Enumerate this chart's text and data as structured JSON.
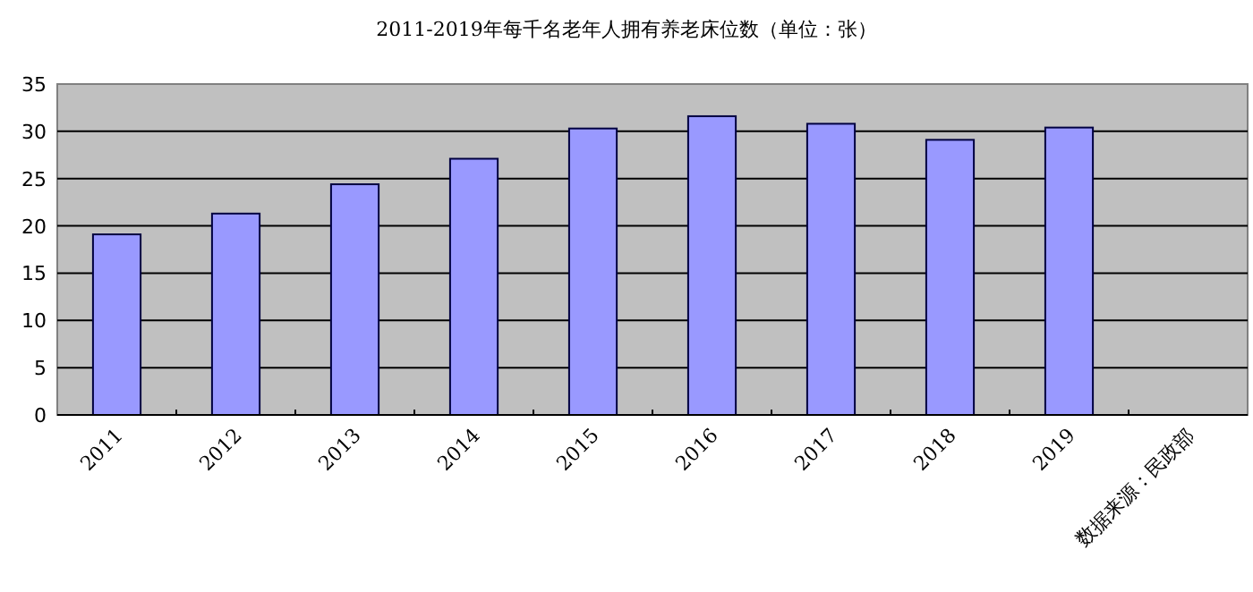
{
  "chart_data": {
    "type": "bar",
    "title": "2011-2019年每千名老年人拥有养老床位数（单位：张）",
    "categories": [
      "2011",
      "2012",
      "2013",
      "2014",
      "2015",
      "2016",
      "2017",
      "2018",
      "2019",
      "数据来源：民政部"
    ],
    "values": [
      19.1,
      21.3,
      24.4,
      27.1,
      30.3,
      31.6,
      30.8,
      29.1,
      30.4,
      null
    ],
    "color": "#9999ff",
    "ylim": [
      0,
      35
    ],
    "yticks": [
      0,
      5,
      10,
      15,
      20,
      25,
      30,
      35
    ],
    "grid": "y"
  }
}
